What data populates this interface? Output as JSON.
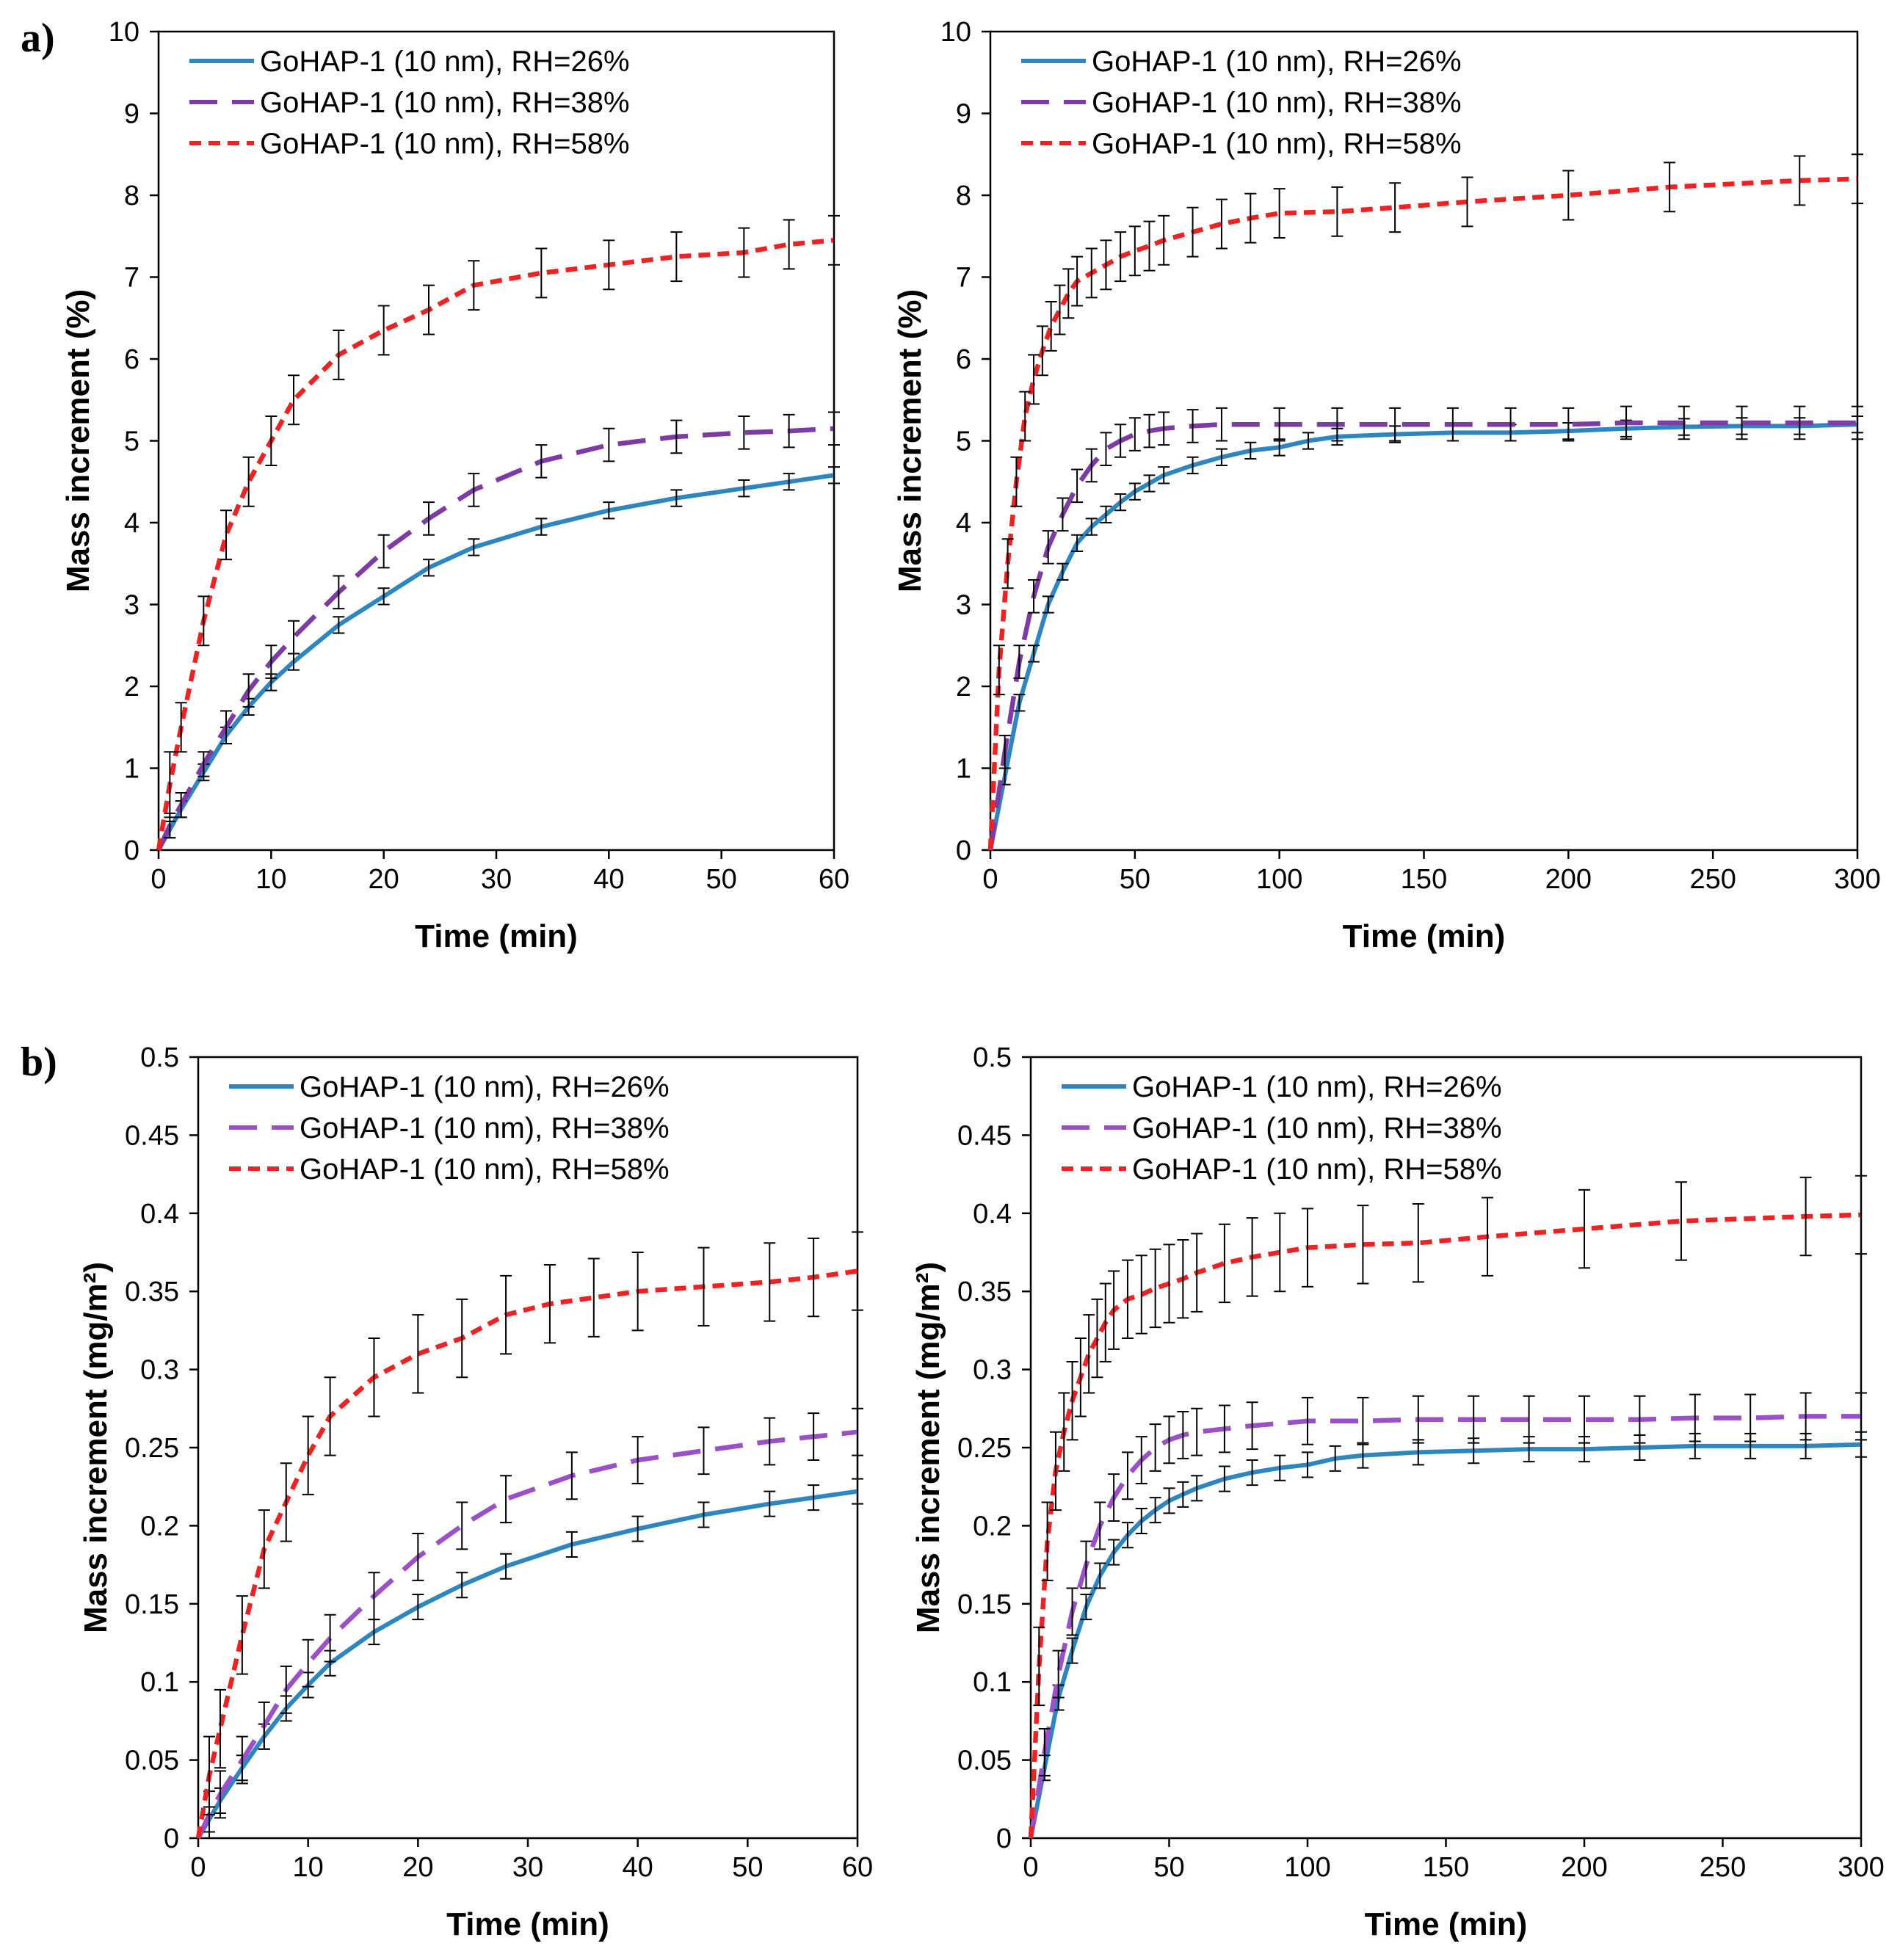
{
  "panel_labels": [
    "a)",
    "b)"
  ],
  "chart_data": [
    {
      "type": "line",
      "title": "",
      "xlabel": "Time (min)",
      "ylabel": "Mass increment (%)",
      "xlim": [
        0,
        60
      ],
      "ylim": [
        0,
        10
      ],
      "xticks": [
        0,
        10,
        20,
        30,
        40,
        50,
        60
      ],
      "yticks": [
        0,
        1,
        2,
        3,
        4,
        5,
        6,
        7,
        8,
        9,
        10
      ],
      "grid": false,
      "legend_position": "top-left",
      "series": [
        {
          "name": "GoHAP-1 (10 nm), RH=26%",
          "color": "#2E86C1",
          "dash": "solid",
          "x": [
            0,
            1,
            2,
            4,
            6,
            8,
            10,
            12,
            16,
            20,
            24,
            28,
            34,
            40,
            46,
            52,
            56,
            60
          ],
          "y": [
            0,
            0.25,
            0.5,
            0.95,
            1.4,
            1.75,
            2.05,
            2.3,
            2.75,
            3.1,
            3.45,
            3.7,
            3.95,
            4.15,
            4.3,
            4.42,
            4.5,
            4.58
          ],
          "err": [
            0,
            0.1,
            0.1,
            0.1,
            0.1,
            0.1,
            0.1,
            0.1,
            0.1,
            0.1,
            0.1,
            0.1,
            0.1,
            0.1,
            0.1,
            0.1,
            0.1,
            0.1
          ]
        },
        {
          "name": "GoHAP-1 (10 nm), RH=38%",
          "color": "#7E3BA6",
          "dash": "long",
          "x": [
            0,
            1,
            2,
            4,
            6,
            8,
            10,
            12,
            16,
            20,
            24,
            28,
            34,
            40,
            46,
            52,
            56,
            60
          ],
          "y": [
            0,
            0.3,
            0.55,
            1.05,
            1.5,
            1.95,
            2.3,
            2.6,
            3.15,
            3.65,
            4.05,
            4.4,
            4.75,
            4.95,
            5.05,
            5.1,
            5.12,
            5.15
          ],
          "err": [
            0,
            0.15,
            0.15,
            0.15,
            0.2,
            0.2,
            0.2,
            0.2,
            0.2,
            0.2,
            0.2,
            0.2,
            0.2,
            0.2,
            0.2,
            0.2,
            0.2,
            0.2
          ]
        },
        {
          "name": "GoHAP-1 (10 nm), RH=58%",
          "color": "#EE2222",
          "dash": "short",
          "x": [
            0,
            1,
            2,
            4,
            6,
            8,
            10,
            12,
            16,
            20,
            24,
            28,
            34,
            40,
            46,
            52,
            56,
            60
          ],
          "y": [
            0,
            0.8,
            1.5,
            2.8,
            3.85,
            4.5,
            5.0,
            5.5,
            6.05,
            6.35,
            6.6,
            6.9,
            7.05,
            7.15,
            7.25,
            7.3,
            7.4,
            7.45
          ],
          "err": [
            0,
            0.4,
            0.3,
            0.3,
            0.3,
            0.3,
            0.3,
            0.3,
            0.3,
            0.3,
            0.3,
            0.3,
            0.3,
            0.3,
            0.3,
            0.3,
            0.3,
            0.3
          ]
        }
      ]
    },
    {
      "type": "line",
      "title": "",
      "xlabel": "Time (min)",
      "ylabel": "Mass increment (%)",
      "xlim": [
        0,
        300
      ],
      "ylim": [
        0,
        10
      ],
      "xticks": [
        0,
        50,
        100,
        150,
        200,
        250,
        300
      ],
      "yticks": [
        0,
        1,
        2,
        3,
        4,
        5,
        6,
        7,
        8,
        9,
        10
      ],
      "grid": false,
      "legend_position": "top-left",
      "series": [
        {
          "name": "GoHAP-1 (10 nm), RH=26%",
          "color": "#2E86C1",
          "dash": "solid",
          "x": [
            0,
            5,
            10,
            15,
            20,
            25,
            30,
            35,
            40,
            45,
            50,
            55,
            60,
            70,
            80,
            90,
            100,
            110,
            120,
            140,
            160,
            180,
            200,
            220,
            240,
            260,
            280,
            300
          ],
          "y": [
            0,
            0.9,
            1.8,
            2.4,
            3.0,
            3.4,
            3.75,
            3.95,
            4.1,
            4.25,
            4.38,
            4.48,
            4.58,
            4.7,
            4.8,
            4.88,
            4.92,
            5.0,
            5.05,
            5.08,
            5.1,
            5.1,
            5.12,
            5.15,
            5.17,
            5.18,
            5.18,
            5.2
          ],
          "err": [
            0,
            0.1,
            0.1,
            0.1,
            0.1,
            0.1,
            0.1,
            0.1,
            0.1,
            0.1,
            0.1,
            0.1,
            0.1,
            0.1,
            0.1,
            0.1,
            0.1,
            0.1,
            0.1,
            0.1,
            0.1,
            0.1,
            0.1,
            0.1,
            0.1,
            0.1,
            0.1,
            0.1
          ]
        },
        {
          "name": "GoHAP-1 (10 nm), RH=38%",
          "color": "#7E3BA6",
          "dash": "long",
          "x": [
            0,
            5,
            10,
            15,
            20,
            25,
            30,
            35,
            40,
            45,
            50,
            55,
            60,
            70,
            80,
            100,
            120,
            140,
            160,
            180,
            200,
            220,
            240,
            260,
            280,
            300
          ],
          "y": [
            0,
            1.2,
            2.3,
            3.1,
            3.7,
            4.1,
            4.45,
            4.7,
            4.9,
            5.0,
            5.08,
            5.12,
            5.15,
            5.18,
            5.2,
            5.2,
            5.2,
            5.2,
            5.2,
            5.2,
            5.2,
            5.22,
            5.22,
            5.22,
            5.22,
            5.22
          ],
          "err": [
            0,
            0.2,
            0.2,
            0.2,
            0.2,
            0.2,
            0.2,
            0.2,
            0.2,
            0.2,
            0.2,
            0.2,
            0.2,
            0.2,
            0.2,
            0.2,
            0.2,
            0.2,
            0.2,
            0.2,
            0.2,
            0.2,
            0.2,
            0.2,
            0.2,
            0.2
          ]
        },
        {
          "name": "GoHAP-1 (10 nm), RH=58%",
          "color": "#EE2222",
          "dash": "short",
          "x": [
            0,
            3,
            6,
            9,
            12,
            15,
            18,
            21,
            24,
            27,
            30,
            35,
            40,
            45,
            50,
            55,
            60,
            70,
            80,
            90,
            100,
            120,
            140,
            165,
            200,
            235,
            280,
            300
          ],
          "y": [
            0,
            2.2,
            3.5,
            4.5,
            5.3,
            5.75,
            6.1,
            6.4,
            6.6,
            6.8,
            6.95,
            7.05,
            7.15,
            7.25,
            7.32,
            7.38,
            7.45,
            7.55,
            7.65,
            7.72,
            7.78,
            7.8,
            7.85,
            7.92,
            8.0,
            8.1,
            8.18,
            8.2
          ],
          "err": [
            0,
            0.3,
            0.3,
            0.3,
            0.3,
            0.3,
            0.3,
            0.3,
            0.3,
            0.3,
            0.3,
            0.3,
            0.3,
            0.3,
            0.3,
            0.3,
            0.3,
            0.3,
            0.3,
            0.3,
            0.3,
            0.3,
            0.3,
            0.3,
            0.3,
            0.3,
            0.3,
            0.3
          ]
        }
      ]
    },
    {
      "type": "line",
      "title": "",
      "xlabel": "Time (min)",
      "ylabel": "Mass increment (mg/m²)",
      "xlim": [
        0,
        60
      ],
      "ylim": [
        0,
        0.5
      ],
      "xticks": [
        0,
        10,
        20,
        30,
        40,
        50,
        60
      ],
      "yticks": [
        0,
        0.05,
        0.1,
        0.15,
        0.2,
        0.25,
        0.3,
        0.35,
        0.4,
        0.45,
        0.5
      ],
      "grid": false,
      "legend_position": "top-left",
      "series": [
        {
          "name": "GoHAP-1 (10 nm), RH=26%",
          "color": "#2E86C1",
          "dash": "solid",
          "x": [
            0,
            1,
            2,
            4,
            6,
            8,
            10,
            12,
            16,
            20,
            24,
            28,
            34,
            40,
            46,
            52,
            56,
            60
          ],
          "y": [
            0,
            0.012,
            0.024,
            0.045,
            0.065,
            0.083,
            0.098,
            0.112,
            0.132,
            0.148,
            0.162,
            0.174,
            0.188,
            0.198,
            0.207,
            0.214,
            0.218,
            0.222
          ],
          "err": [
            0,
            0.008,
            0.008,
            0.008,
            0.008,
            0.008,
            0.008,
            0.008,
            0.008,
            0.008,
            0.008,
            0.008,
            0.008,
            0.008,
            0.008,
            0.008,
            0.008,
            0.008
          ]
        },
        {
          "name": "GoHAP-1 (10 nm), RH=38%",
          "color": "#9B4FC8",
          "dash": "long",
          "x": [
            0,
            1,
            2,
            4,
            6,
            8,
            10,
            12,
            16,
            20,
            24,
            28,
            34,
            40,
            46,
            52,
            56,
            60
          ],
          "y": [
            0,
            0.015,
            0.028,
            0.05,
            0.072,
            0.095,
            0.112,
            0.128,
            0.155,
            0.18,
            0.2,
            0.217,
            0.232,
            0.242,
            0.248,
            0.254,
            0.257,
            0.26
          ],
          "err": [
            0,
            0.015,
            0.015,
            0.015,
            0.015,
            0.015,
            0.015,
            0.015,
            0.015,
            0.015,
            0.015,
            0.015,
            0.015,
            0.015,
            0.015,
            0.015,
            0.015,
            0.015
          ]
        },
        {
          "name": "GoHAP-1 (10 nm), RH=58%",
          "color": "#EE2222",
          "dash": "short",
          "x": [
            0,
            1,
            2,
            4,
            6,
            8,
            10,
            12,
            16,
            20,
            24,
            28,
            32,
            36,
            40,
            46,
            52,
            56,
            60
          ],
          "y": [
            0,
            0.04,
            0.07,
            0.13,
            0.185,
            0.215,
            0.245,
            0.27,
            0.295,
            0.31,
            0.32,
            0.335,
            0.342,
            0.346,
            0.35,
            0.353,
            0.356,
            0.359,
            0.363
          ],
          "err": [
            0,
            0.025,
            0.025,
            0.025,
            0.025,
            0.025,
            0.025,
            0.025,
            0.025,
            0.025,
            0.025,
            0.025,
            0.025,
            0.025,
            0.025,
            0.025,
            0.025,
            0.025,
            0.025
          ]
        }
      ]
    },
    {
      "type": "line",
      "title": "",
      "xlabel": "Time (min)",
      "ylabel": "Mass increment (mg/m²)",
      "xlim": [
        0,
        300
      ],
      "ylim": [
        0,
        0.5
      ],
      "xticks": [
        0,
        50,
        100,
        150,
        200,
        250,
        300
      ],
      "yticks": [
        0,
        0.05,
        0.1,
        0.15,
        0.2,
        0.25,
        0.3,
        0.35,
        0.4,
        0.45,
        0.5
      ],
      "grid": false,
      "legend_position": "top-left",
      "series": [
        {
          "name": "GoHAP-1 (10 nm), RH=26%",
          "color": "#2E86C1",
          "dash": "solid",
          "x": [
            0,
            5,
            10,
            15,
            20,
            25,
            30,
            35,
            40,
            45,
            50,
            55,
            60,
            70,
            80,
            90,
            100,
            110,
            120,
            140,
            160,
            180,
            200,
            220,
            240,
            260,
            280,
            300
          ],
          "y": [
            0,
            0.045,
            0.09,
            0.12,
            0.148,
            0.168,
            0.183,
            0.194,
            0.203,
            0.21,
            0.216,
            0.22,
            0.224,
            0.23,
            0.234,
            0.237,
            0.239,
            0.243,
            0.245,
            0.247,
            0.248,
            0.249,
            0.249,
            0.25,
            0.251,
            0.251,
            0.251,
            0.252
          ],
          "err": [
            0,
            0.008,
            0.008,
            0.008,
            0.008,
            0.008,
            0.008,
            0.008,
            0.008,
            0.008,
            0.008,
            0.008,
            0.008,
            0.008,
            0.008,
            0.008,
            0.008,
            0.008,
            0.008,
            0.008,
            0.008,
            0.008,
            0.008,
            0.008,
            0.008,
            0.008,
            0.008,
            0.008
          ]
        },
        {
          "name": "GoHAP-1 (10 nm), RH=38%",
          "color": "#9B4FC8",
          "dash": "long",
          "x": [
            0,
            5,
            10,
            15,
            20,
            25,
            30,
            35,
            40,
            45,
            50,
            55,
            60,
            70,
            80,
            100,
            120,
            140,
            160,
            180,
            200,
            220,
            240,
            260,
            280,
            300
          ],
          "y": [
            0,
            0.055,
            0.105,
            0.145,
            0.175,
            0.2,
            0.218,
            0.232,
            0.242,
            0.25,
            0.255,
            0.258,
            0.26,
            0.262,
            0.264,
            0.267,
            0.267,
            0.268,
            0.268,
            0.268,
            0.268,
            0.268,
            0.269,
            0.269,
            0.27,
            0.27
          ],
          "err": [
            0,
            0.015,
            0.015,
            0.015,
            0.015,
            0.015,
            0.015,
            0.015,
            0.015,
            0.015,
            0.015,
            0.015,
            0.015,
            0.015,
            0.015,
            0.015,
            0.015,
            0.015,
            0.015,
            0.015,
            0.015,
            0.015,
            0.015,
            0.015,
            0.015,
            0.015
          ]
        },
        {
          "name": "GoHAP-1 (10 nm), RH=58%",
          "color": "#EE2222",
          "dash": "short",
          "x": [
            0,
            3,
            6,
            9,
            12,
            15,
            18,
            21,
            24,
            27,
            30,
            35,
            40,
            45,
            50,
            55,
            60,
            70,
            80,
            90,
            100,
            120,
            140,
            165,
            200,
            235,
            280,
            300
          ],
          "y": [
            0,
            0.11,
            0.19,
            0.235,
            0.26,
            0.28,
            0.295,
            0.31,
            0.32,
            0.33,
            0.338,
            0.345,
            0.348,
            0.352,
            0.355,
            0.358,
            0.362,
            0.368,
            0.372,
            0.375,
            0.378,
            0.38,
            0.381,
            0.385,
            0.39,
            0.395,
            0.398,
            0.399
          ],
          "err": [
            0,
            0.025,
            0.025,
            0.025,
            0.025,
            0.025,
            0.025,
            0.025,
            0.025,
            0.025,
            0.025,
            0.025,
            0.025,
            0.025,
            0.025,
            0.025,
            0.025,
            0.025,
            0.025,
            0.025,
            0.025,
            0.025,
            0.025,
            0.025,
            0.025,
            0.025,
            0.025,
            0.025
          ]
        }
      ]
    }
  ]
}
